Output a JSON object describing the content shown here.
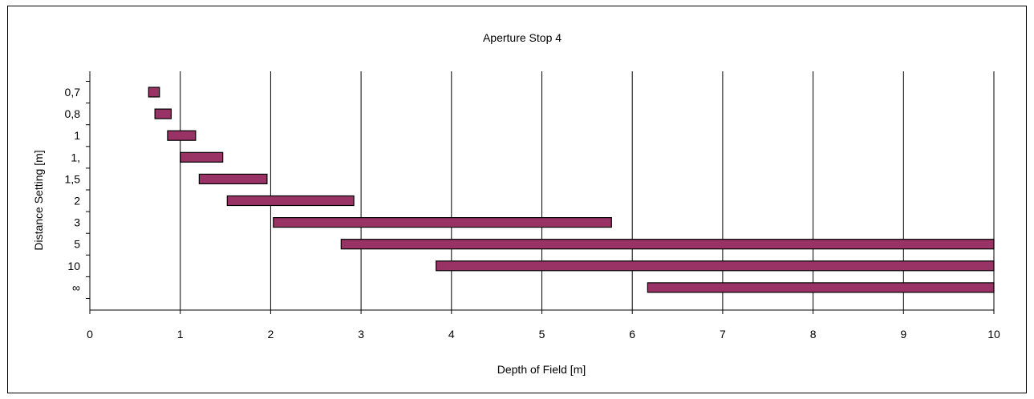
{
  "chart_data": {
    "type": "bar",
    "orientation": "horizontal-range",
    "title": "Aperture Stop 4",
    "xlabel": "Depth of Field [m]",
    "ylabel": "Distance Setting [m]",
    "xlim": [
      0,
      10
    ],
    "xticks": [
      "0",
      "1",
      "2",
      "3",
      "4",
      "5",
      "6",
      "7",
      "8",
      "9",
      "10"
    ],
    "grid": true,
    "legend": "none",
    "bar_color": "#993366",
    "categories": [
      "0,7",
      "0,8",
      "1",
      "1,",
      "1,5",
      "2",
      "3",
      "5",
      "10",
      "∞"
    ],
    "ranges": [
      {
        "start": 0.65,
        "end": 0.77
      },
      {
        "start": 0.72,
        "end": 0.9
      },
      {
        "start": 0.86,
        "end": 1.17
      },
      {
        "start": 1.0,
        "end": 1.47
      },
      {
        "start": 1.21,
        "end": 1.96
      },
      {
        "start": 1.52,
        "end": 2.92
      },
      {
        "start": 2.03,
        "end": 5.77
      },
      {
        "start": 2.78,
        "end": 10
      },
      {
        "start": 3.83,
        "end": 10
      },
      {
        "start": 6.17,
        "end": 10
      }
    ]
  }
}
